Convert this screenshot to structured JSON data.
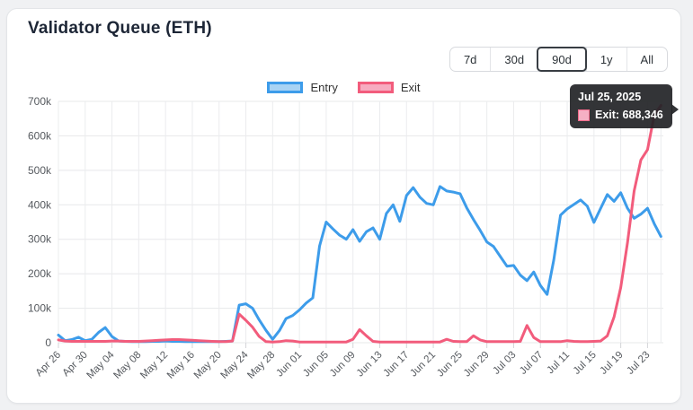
{
  "card": {
    "title": "Validator Queue (ETH)"
  },
  "range_buttons": {
    "options": [
      "7d",
      "30d",
      "90d",
      "1y",
      "All"
    ],
    "selected": "90d"
  },
  "legend": [
    {
      "label": "Entry",
      "line_color": "#3D9CEA",
      "fill_color": "#A8D3F4"
    },
    {
      "label": "Exit",
      "line_color": "#F25C7C",
      "fill_color": "#F7ABC0"
    }
  ],
  "tooltip": {
    "title": "Jul 25, 2025",
    "body": "Exit: 688,346",
    "swatch_fill": "#F5B0C4",
    "swatch_border": "#F06A8A"
  },
  "chart_data": {
    "type": "line",
    "title": "Validator Queue (ETH)",
    "xlabel": "",
    "ylabel": "",
    "ylim": [
      0,
      700000
    ],
    "y_ticks": [
      "0",
      "100k",
      "200k",
      "300k",
      "400k",
      "500k",
      "600k",
      "700k"
    ],
    "grid": true,
    "legend_position": "top",
    "x_range": [
      "Apr 26",
      "Jul 25"
    ],
    "tick_labels": [
      "Apr 26",
      "Apr 30",
      "May 04",
      "May 08",
      "May 12",
      "May 16",
      "May 20",
      "May 24",
      "May 28",
      "Jun 01",
      "Jun 05",
      "Jun 09",
      "Jun 13",
      "Jun 17",
      "Jun 21",
      "Jun 25",
      "Jun 29",
      "Jul 03",
      "Jul 07",
      "Jul 11",
      "Jul 15",
      "Jul 19",
      "Jul 23"
    ],
    "tick_indices": [
      0,
      4,
      8,
      12,
      16,
      20,
      24,
      28,
      32,
      36,
      40,
      44,
      48,
      52,
      56,
      60,
      64,
      68,
      72,
      76,
      80,
      84,
      88
    ],
    "series": [
      {
        "name": "Entry",
        "color": "#3D9CEA",
        "values": [
          22000,
          6000,
          9000,
          16000,
          6000,
          10000,
          30000,
          44000,
          18000,
          5000,
          4000,
          3000,
          3000,
          3000,
          4000,
          4000,
          5000,
          4000,
          4000,
          3000,
          3000,
          3000,
          3000,
          3000,
          3000,
          4000,
          5000,
          109000,
          113000,
          100000,
          66000,
          36000,
          10000,
          35000,
          70000,
          79000,
          95000,
          115000,
          130000,
          280000,
          350000,
          330000,
          312000,
          300000,
          328000,
          294000,
          322000,
          333000,
          300000,
          375000,
          400000,
          352000,
          427000,
          450000,
          422000,
          404000,
          400000,
          453000,
          440000,
          437000,
          432000,
          391000,
          357000,
          326000,
          292000,
          279000,
          250000,
          222000,
          224000,
          196000,
          180000,
          205000,
          166000,
          140000,
          240000,
          370000,
          388000,
          401000,
          414000,
          396000,
          349000,
          390000,
          430000,
          410000,
          435000,
          390000,
          361000,
          373000,
          390000,
          345000,
          308000
        ]
      },
      {
        "name": "Exit",
        "color": "#F25C7C",
        "values": [
          8000,
          5000,
          4000,
          4000,
          4000,
          4000,
          4000,
          4000,
          5000,
          5000,
          4000,
          4000,
          4000,
          5000,
          6000,
          7000,
          8000,
          9000,
          9000,
          8000,
          7000,
          6000,
          5000,
          4000,
          3000,
          3000,
          5000,
          83000,
          65000,
          45000,
          18000,
          3000,
          2000,
          3000,
          6000,
          5000,
          2000,
          2000,
          2000,
          2000,
          2000,
          2000,
          2000,
          2000,
          10000,
          38000,
          20000,
          4000,
          2000,
          2000,
          2000,
          2000,
          2000,
          2000,
          2000,
          2000,
          2000,
          2000,
          10000,
          4000,
          3000,
          3000,
          20000,
          8000,
          3000,
          3000,
          3000,
          3000,
          3000,
          4000,
          50000,
          15000,
          3000,
          3000,
          3000,
          3000,
          6000,
          4000,
          3000,
          3000,
          4000,
          5000,
          20000,
          75000,
          160000,
          290000,
          440000,
          530000,
          560000,
          660000,
          688346
        ]
      }
    ],
    "highlighted_point": {
      "series": "Exit",
      "x_label": "Jul 25, 2025",
      "value": 688346
    }
  }
}
